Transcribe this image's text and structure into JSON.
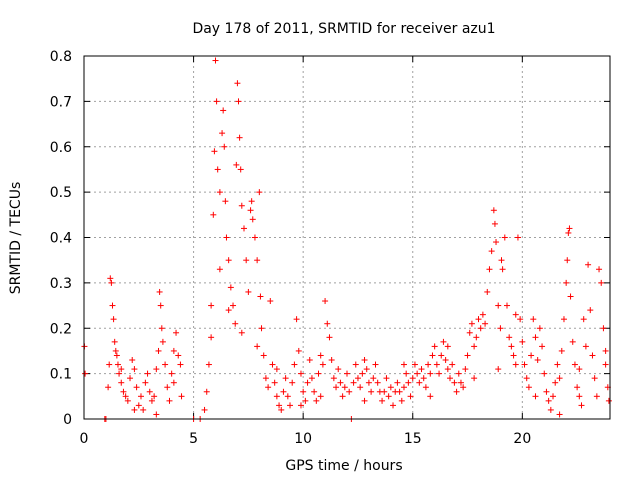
{
  "chart_data": {
    "type": "scatter",
    "title": "Day 178 of 2011, SRMTID for receiver azu1",
    "xlabel": "GPS time / hours",
    "ylabel": "SRMTID / TECUs",
    "xlim": [
      0,
      24
    ],
    "ylim": [
      0,
      0.8
    ],
    "x_ticks": [
      0,
      5,
      10,
      15,
      20
    ],
    "y_ticks": [
      0,
      0.1,
      0.2,
      0.3,
      0.4,
      0.5,
      0.6,
      0.7,
      0.8
    ],
    "x_tick_labels": [
      "0",
      "5",
      "10",
      "15",
      "20"
    ],
    "y_tick_labels": [
      "0",
      "0.1",
      "0.2",
      "0.3",
      "0.4",
      "0.5",
      "0.6",
      "0.7",
      "0.8"
    ],
    "grid": true,
    "marker": "+",
    "series": [
      {
        "name": "SRMTID",
        "color": "#ff0000",
        "points": [
          [
            0.02,
            0.16
          ],
          [
            0.05,
            0.1
          ],
          [
            0.95,
            0.0
          ],
          [
            1.0,
            0.0
          ],
          [
            1.1,
            0.07
          ],
          [
            1.15,
            0.12
          ],
          [
            1.2,
            0.31
          ],
          [
            1.25,
            0.3
          ],
          [
            1.3,
            0.25
          ],
          [
            1.35,
            0.22
          ],
          [
            1.4,
            0.17
          ],
          [
            1.45,
            0.15
          ],
          [
            1.5,
            0.14
          ],
          [
            1.55,
            0.12
          ],
          [
            1.6,
            0.1
          ],
          [
            1.7,
            0.08
          ],
          [
            1.8,
            0.06
          ],
          [
            1.9,
            0.05
          ],
          [
            2.0,
            0.04
          ],
          [
            2.1,
            0.09
          ],
          [
            2.2,
            0.13
          ],
          [
            2.3,
            0.11
          ],
          [
            2.4,
            0.07
          ],
          [
            2.5,
            0.03
          ],
          [
            2.6,
            0.05
          ],
          [
            2.7,
            0.02
          ],
          [
            2.8,
            0.08
          ],
          [
            2.9,
            0.1
          ],
          [
            3.0,
            0.06
          ],
          [
            3.1,
            0.04
          ],
          [
            3.2,
            0.05
          ],
          [
            3.3,
            0.11
          ],
          [
            3.4,
            0.15
          ],
          [
            3.45,
            0.28
          ],
          [
            3.5,
            0.25
          ],
          [
            3.55,
            0.2
          ],
          [
            3.6,
            0.17
          ],
          [
            3.7,
            0.12
          ],
          [
            3.8,
            0.07
          ],
          [
            3.9,
            0.04
          ],
          [
            4.0,
            0.1
          ],
          [
            4.1,
            0.15
          ],
          [
            4.2,
            0.19
          ],
          [
            4.3,
            0.14
          ],
          [
            4.4,
            0.12
          ],
          [
            4.45,
            0.05
          ],
          [
            5.0,
            0.0
          ],
          [
            5.3,
            0.0
          ],
          [
            5.5,
            0.02
          ],
          [
            5.6,
            0.06
          ],
          [
            5.7,
            0.12
          ],
          [
            5.8,
            0.25
          ],
          [
            5.9,
            0.45
          ],
          [
            5.95,
            0.59
          ],
          [
            6.0,
            0.79
          ],
          [
            6.05,
            0.7
          ],
          [
            6.1,
            0.55
          ],
          [
            6.2,
            0.5
          ],
          [
            6.3,
            0.63
          ],
          [
            6.35,
            0.68
          ],
          [
            6.4,
            0.6
          ],
          [
            6.45,
            0.48
          ],
          [
            6.5,
            0.4
          ],
          [
            6.6,
            0.35
          ],
          [
            6.7,
            0.29
          ],
          [
            6.8,
            0.25
          ],
          [
            6.9,
            0.21
          ],
          [
            6.95,
            0.56
          ],
          [
            7.0,
            0.74
          ],
          [
            7.05,
            0.7
          ],
          [
            7.1,
            0.62
          ],
          [
            7.15,
            0.55
          ],
          [
            7.2,
            0.47
          ],
          [
            7.3,
            0.42
          ],
          [
            7.4,
            0.35
          ],
          [
            7.5,
            0.28
          ],
          [
            7.6,
            0.46
          ],
          [
            7.65,
            0.48
          ],
          [
            7.7,
            0.44
          ],
          [
            7.8,
            0.4
          ],
          [
            7.9,
            0.35
          ],
          [
            8.0,
            0.5
          ],
          [
            8.05,
            0.27
          ],
          [
            8.1,
            0.2
          ],
          [
            8.2,
            0.14
          ],
          [
            8.3,
            0.09
          ],
          [
            8.4,
            0.07
          ],
          [
            8.5,
            0.26
          ],
          [
            8.6,
            0.12
          ],
          [
            8.7,
            0.08
          ],
          [
            8.8,
            0.05
          ],
          [
            8.9,
            0.03
          ],
          [
            9.0,
            0.02
          ],
          [
            9.1,
            0.06
          ],
          [
            9.2,
            0.09
          ],
          [
            9.3,
            0.05
          ],
          [
            9.4,
            0.03
          ],
          [
            9.5,
            0.08
          ],
          [
            9.6,
            0.12
          ],
          [
            9.7,
            0.22
          ],
          [
            9.8,
            0.15
          ],
          [
            9.9,
            0.1
          ],
          [
            10.0,
            0.06
          ],
          [
            10.1,
            0.04
          ],
          [
            10.2,
            0.08
          ],
          [
            10.3,
            0.13
          ],
          [
            10.4,
            0.09
          ],
          [
            10.5,
            0.06
          ],
          [
            10.6,
            0.04
          ],
          [
            10.7,
            0.1
          ],
          [
            10.8,
            0.14
          ],
          [
            10.9,
            0.12
          ],
          [
            11.0,
            0.26
          ],
          [
            11.1,
            0.21
          ],
          [
            11.2,
            0.18
          ],
          [
            11.3,
            0.13
          ],
          [
            11.4,
            0.09
          ],
          [
            11.5,
            0.07
          ],
          [
            11.6,
            0.11
          ],
          [
            11.7,
            0.08
          ],
          [
            11.8,
            0.05
          ],
          [
            11.9,
            0.07
          ],
          [
            12.0,
            0.1
          ],
          [
            12.1,
            0.06
          ],
          [
            12.2,
            0.0
          ],
          [
            12.3,
            0.08
          ],
          [
            12.4,
            0.12
          ],
          [
            12.5,
            0.09
          ],
          [
            12.6,
            0.07
          ],
          [
            12.7,
            0.1
          ],
          [
            12.8,
            0.13
          ],
          [
            12.9,
            0.11
          ],
          [
            13.0,
            0.08
          ],
          [
            13.1,
            0.06
          ],
          [
            13.2,
            0.09
          ],
          [
            13.3,
            0.12
          ],
          [
            13.4,
            0.08
          ],
          [
            13.5,
            0.06
          ],
          [
            13.6,
            0.04
          ],
          [
            13.7,
            0.06
          ],
          [
            13.8,
            0.09
          ],
          [
            13.9,
            0.05
          ],
          [
            14.0,
            0.07
          ],
          [
            14.1,
            0.03
          ],
          [
            14.2,
            0.06
          ],
          [
            14.3,
            0.08
          ],
          [
            14.4,
            0.06
          ],
          [
            14.5,
            0.04
          ],
          [
            14.6,
            0.07
          ],
          [
            14.7,
            0.1
          ],
          [
            14.8,
            0.08
          ],
          [
            14.9,
            0.05
          ],
          [
            15.0,
            0.09
          ],
          [
            15.1,
            0.12
          ],
          [
            15.2,
            0.1
          ],
          [
            15.3,
            0.08
          ],
          [
            15.4,
            0.11
          ],
          [
            15.5,
            0.09
          ],
          [
            15.6,
            0.07
          ],
          [
            15.7,
            0.12
          ],
          [
            15.8,
            0.1
          ],
          [
            15.9,
            0.14
          ],
          [
            16.0,
            0.16
          ],
          [
            16.1,
            0.12
          ],
          [
            16.2,
            0.1
          ],
          [
            16.3,
            0.14
          ],
          [
            16.4,
            0.17
          ],
          [
            16.5,
            0.13
          ],
          [
            16.6,
            0.11
          ],
          [
            16.7,
            0.09
          ],
          [
            16.8,
            0.12
          ],
          [
            16.9,
            0.08
          ],
          [
            17.0,
            0.06
          ],
          [
            17.1,
            0.1
          ],
          [
            17.2,
            0.08
          ],
          [
            17.3,
            0.07
          ],
          [
            17.4,
            0.11
          ],
          [
            17.5,
            0.14
          ],
          [
            17.6,
            0.19
          ],
          [
            17.7,
            0.21
          ],
          [
            17.8,
            0.16
          ],
          [
            17.9,
            0.18
          ],
          [
            18.0,
            0.22
          ],
          [
            18.1,
            0.2
          ],
          [
            18.2,
            0.23
          ],
          [
            18.3,
            0.21
          ],
          [
            18.4,
            0.28
          ],
          [
            18.5,
            0.33
          ],
          [
            18.6,
            0.37
          ],
          [
            18.7,
            0.46
          ],
          [
            18.75,
            0.43
          ],
          [
            18.8,
            0.39
          ],
          [
            18.9,
            0.25
          ],
          [
            19.0,
            0.2
          ],
          [
            19.05,
            0.35
          ],
          [
            19.1,
            0.33
          ],
          [
            19.2,
            0.4
          ],
          [
            19.3,
            0.25
          ],
          [
            19.4,
            0.18
          ],
          [
            19.5,
            0.16
          ],
          [
            19.6,
            0.14
          ],
          [
            19.7,
            0.12
          ],
          [
            19.8,
            0.4
          ],
          [
            19.9,
            0.22
          ],
          [
            20.0,
            0.17
          ],
          [
            20.1,
            0.12
          ],
          [
            20.2,
            0.09
          ],
          [
            20.3,
            0.07
          ],
          [
            20.4,
            0.14
          ],
          [
            20.5,
            0.22
          ],
          [
            20.6,
            0.18
          ],
          [
            20.7,
            0.13
          ],
          [
            20.8,
            0.2
          ],
          [
            20.9,
            0.16
          ],
          [
            21.0,
            0.1
          ],
          [
            21.1,
            0.06
          ],
          [
            21.2,
            0.04
          ],
          [
            21.3,
            0.02
          ],
          [
            21.4,
            0.05
          ],
          [
            21.5,
            0.08
          ],
          [
            21.6,
            0.12
          ],
          [
            21.7,
            0.09
          ],
          [
            21.8,
            0.15
          ],
          [
            21.9,
            0.22
          ],
          [
            22.0,
            0.3
          ],
          [
            22.05,
            0.35
          ],
          [
            22.1,
            0.41
          ],
          [
            22.15,
            0.42
          ],
          [
            22.2,
            0.27
          ],
          [
            22.3,
            0.17
          ],
          [
            22.4,
            0.12
          ],
          [
            22.5,
            0.07
          ],
          [
            22.6,
            0.05
          ],
          [
            22.7,
            0.03
          ],
          [
            22.8,
            0.22
          ],
          [
            22.9,
            0.16
          ],
          [
            23.0,
            0.34
          ],
          [
            23.1,
            0.24
          ],
          [
            23.2,
            0.14
          ],
          [
            23.3,
            0.09
          ],
          [
            23.4,
            0.05
          ],
          [
            23.5,
            0.33
          ],
          [
            23.6,
            0.3
          ],
          [
            23.7,
            0.2
          ],
          [
            23.8,
            0.12
          ],
          [
            23.9,
            0.07
          ],
          [
            23.95,
            0.04
          ],
          [
            1.7,
            0.11
          ],
          [
            2.3,
            0.02
          ],
          [
            3.3,
            0.01
          ],
          [
            4.1,
            0.08
          ],
          [
            5.8,
            0.18
          ],
          [
            6.2,
            0.33
          ],
          [
            6.6,
            0.24
          ],
          [
            7.2,
            0.19
          ],
          [
            7.9,
            0.16
          ],
          [
            8.8,
            0.11
          ],
          [
            9.9,
            0.03
          ],
          [
            10.8,
            0.05
          ],
          [
            12.8,
            0.04
          ],
          [
            14.6,
            0.12
          ],
          [
            15.8,
            0.05
          ],
          [
            16.6,
            0.16
          ],
          [
            17.8,
            0.09
          ],
          [
            18.9,
            0.11
          ],
          [
            19.7,
            0.23
          ],
          [
            20.6,
            0.05
          ],
          [
            21.7,
            0.01
          ],
          [
            22.6,
            0.11
          ],
          [
            23.8,
            0.15
          ]
        ]
      }
    ]
  }
}
